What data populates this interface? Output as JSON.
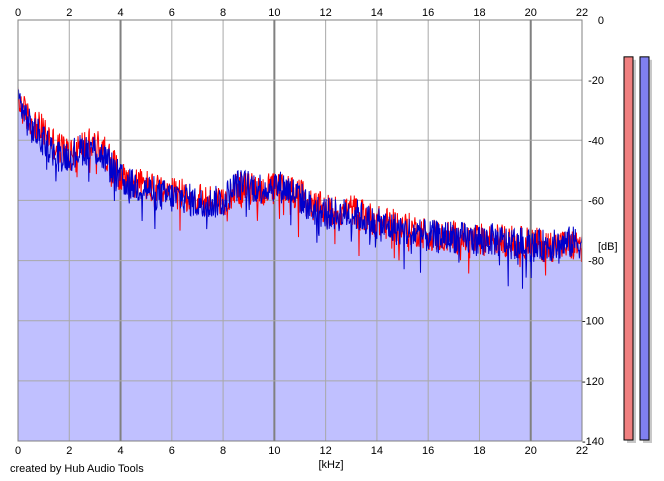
{
  "credit_text": "created by Hub Audio Tools",
  "chart_data": {
    "type": "area",
    "xlabel": "[kHz]",
    "ylabel": "[dB]",
    "xlim": [
      0,
      22
    ],
    "ylim": [
      -140,
      0
    ],
    "x_ticks": [
      0,
      2,
      4,
      6,
      8,
      10,
      12,
      14,
      16,
      18,
      20,
      22
    ],
    "y_ticks": [
      0,
      -20,
      -40,
      -60,
      -80,
      -100,
      -120,
      -140
    ],
    "grid": true,
    "fill_color": "#c0c0ff",
    "series": [
      {
        "color": "#ff0000",
        "x": [
          0,
          0.5,
          1,
          1.5,
          2,
          2.5,
          3,
          3.5,
          4,
          4.5,
          5,
          5.5,
          6,
          6.5,
          7,
          7.5,
          8,
          8.5,
          9,
          9.5,
          10,
          10.5,
          11,
          11.5,
          12,
          12.5,
          13,
          13.5,
          14,
          14.5,
          15,
          15.5,
          16,
          16.5,
          17,
          17.5,
          18,
          18.5,
          19,
          19.5,
          20,
          20.5,
          21,
          21.5,
          22
        ],
        "y": [
          -27,
          -34,
          -37,
          -42,
          -44,
          -42,
          -41,
          -45,
          -52,
          -54,
          -55,
          -57,
          -58,
          -58,
          -60,
          -60,
          -60,
          -56,
          -56,
          -57,
          -56,
          -56,
          -58,
          -62,
          -63,
          -64,
          -63,
          -65,
          -67,
          -68,
          -69,
          -70,
          -71,
          -72,
          -72,
          -73,
          -73,
          -73,
          -73,
          -74,
          -74,
          -75,
          -75,
          -75,
          -75
        ]
      },
      {
        "color": "#0000cc",
        "x": [
          0,
          0.5,
          1,
          1.5,
          2,
          2.5,
          3,
          3.5,
          4,
          4.5,
          5,
          5.5,
          6,
          6.5,
          7,
          7.5,
          8,
          8.5,
          9,
          9.5,
          10,
          10.5,
          11,
          11.5,
          12,
          12.5,
          13,
          13.5,
          14,
          14.5,
          15,
          15.5,
          16,
          16.5,
          17,
          17.5,
          18,
          18.5,
          19,
          19.5,
          20,
          20.5,
          21,
          21.5,
          22
        ],
        "y": [
          -26,
          -36,
          -40,
          -45,
          -45,
          -43,
          -43,
          -47,
          -53,
          -55,
          -56,
          -58,
          -59,
          -59,
          -61,
          -61,
          -60,
          -55,
          -55,
          -56,
          -55,
          -56,
          -59,
          -63,
          -64,
          -65,
          -64,
          -66,
          -68,
          -69,
          -70,
          -71,
          -72,
          -72,
          -72,
          -73,
          -73,
          -73,
          -74,
          -74,
          -75,
          -75,
          -75,
          -74,
          -74
        ]
      }
    ],
    "level_meters": [
      {
        "color": "#f08080",
        "level": 0.97
      },
      {
        "color": "#8080f0",
        "level": 0.97
      }
    ]
  }
}
